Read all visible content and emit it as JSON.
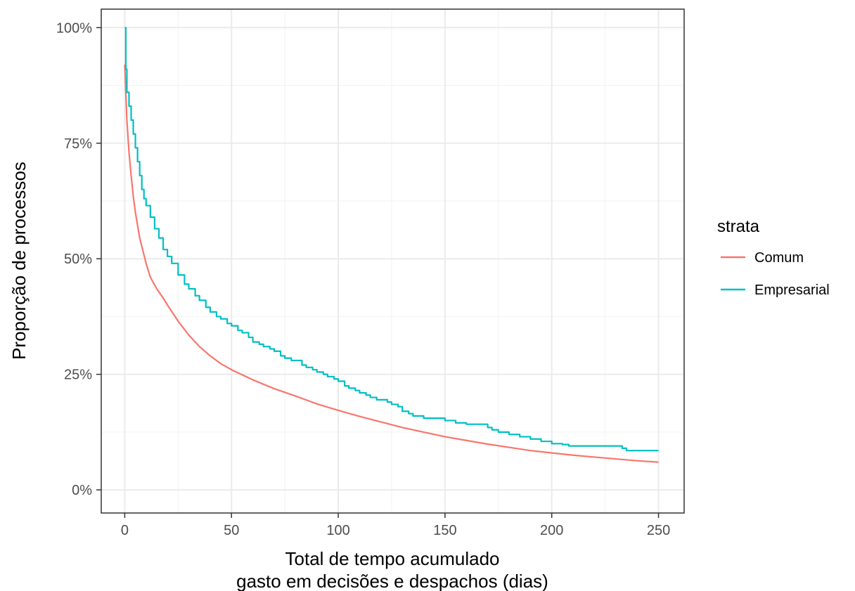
{
  "chart_data": {
    "type": "line",
    "title": "",
    "xlabel_lines": [
      "Total de tempo acumulado",
      "gasto em decisões e despachos (dias)"
    ],
    "ylabel": "Proporção de processos",
    "xlim": [
      -11,
      262
    ],
    "ylim": [
      -5,
      104
    ],
    "x_ticks": [
      0,
      50,
      100,
      150,
      200,
      250
    ],
    "x_tick_labels": [
      "0",
      "50",
      "100",
      "150",
      "200",
      "250"
    ],
    "y_ticks": [
      0,
      25,
      50,
      75,
      100
    ],
    "y_tick_labels": [
      "0%",
      "25%",
      "50%",
      "75%",
      "100%"
    ],
    "grid": true,
    "legend": {
      "title": "strata",
      "placement": "right"
    },
    "series": [
      {
        "name": "Comum",
        "color": "#F8766D",
        "step": false,
        "x": [
          0,
          1,
          2,
          3,
          4,
          5,
          7,
          10,
          12,
          15,
          18,
          20,
          25,
          30,
          35,
          40,
          45,
          50,
          60,
          70,
          80,
          90,
          100,
          110,
          120,
          130,
          140,
          150,
          160,
          170,
          180,
          190,
          200,
          210,
          220,
          230,
          240,
          250
        ],
        "y": [
          92,
          80,
          73,
          68,
          63.5,
          60,
          54.5,
          49,
          46,
          43.5,
          41.5,
          40,
          36.5,
          33.5,
          31,
          29,
          27.3,
          26,
          23.8,
          21.9,
          20.3,
          18.6,
          17.2,
          15.9,
          14.7,
          13.5,
          12.5,
          11.5,
          10.7,
          9.9,
          9.2,
          8.5,
          8.0,
          7.5,
          7.1,
          6.7,
          6.3,
          6.0
        ]
      },
      {
        "name": "Empresarial",
        "color": "#00BFC4",
        "step": true,
        "x": [
          0,
          0.5,
          1,
          2,
          3,
          4,
          5,
          6,
          7,
          8,
          9,
          10,
          12,
          14,
          16,
          18,
          20,
          22,
          25,
          28,
          30,
          33,
          35,
          38,
          40,
          43,
          45,
          48,
          50,
          53,
          55,
          58,
          60,
          63,
          65,
          68,
          70,
          73,
          75,
          78,
          80,
          83,
          85,
          88,
          90,
          93,
          95,
          98,
          100,
          103,
          105,
          108,
          110,
          113,
          115,
          118,
          120,
          123,
          125,
          128,
          130,
          133,
          135,
          140,
          145,
          150,
          155,
          160,
          165,
          170,
          172,
          175,
          180,
          185,
          190,
          195,
          200,
          205,
          208,
          215,
          220,
          225,
          230,
          233,
          235,
          240,
          245,
          250
        ],
        "y": [
          100,
          91,
          86,
          83,
          80,
          77,
          74,
          71,
          68,
          65,
          63,
          61.5,
          59,
          56.5,
          54.5,
          52,
          50.5,
          49,
          46.5,
          44.5,
          43.5,
          42,
          41,
          39.5,
          38.5,
          37.5,
          37,
          36,
          35.5,
          34.5,
          34,
          33,
          32,
          31.5,
          31,
          30.5,
          30,
          29,
          28.5,
          28,
          28,
          27,
          26.5,
          26,
          25.5,
          25,
          24.5,
          24,
          23.5,
          22.5,
          22,
          21.5,
          21,
          20.5,
          20,
          19.5,
          19.5,
          19,
          18.5,
          18,
          17,
          16.5,
          16,
          15.5,
          15.5,
          15,
          14.5,
          14.2,
          14.2,
          13.5,
          13,
          12.5,
          12,
          11.5,
          11,
          10.5,
          10,
          9.8,
          9.5,
          9.5,
          9.5,
          9.5,
          9.5,
          9,
          8.5,
          8.5,
          8.5,
          8.5
        ]
      }
    ]
  }
}
